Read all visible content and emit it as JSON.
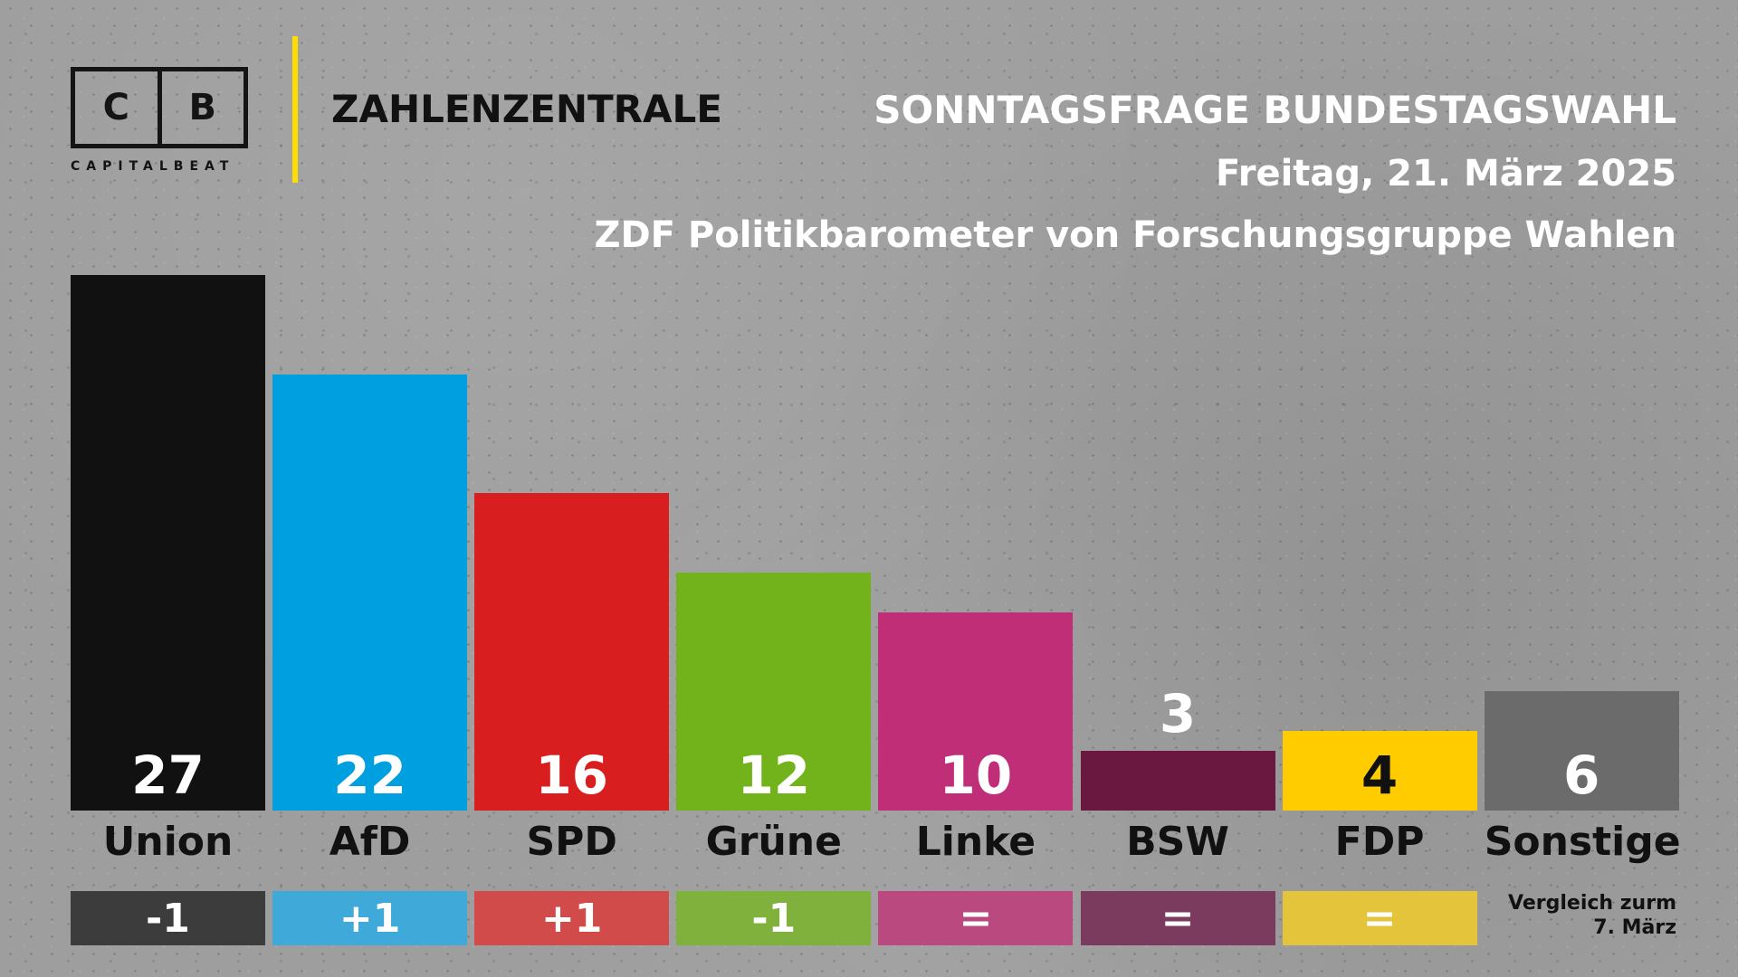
{
  "brand": {
    "logo_left": "C",
    "logo_right": "B",
    "logo_sub": "CAPITALBEAT",
    "name": "ZAHLENZENTRALE",
    "accent": "#ffdd00"
  },
  "header": {
    "title": "SONNTAGSFRAGE BUNDESTAGSWAHL",
    "date": "Freitag, 21. März 2025",
    "source": "ZDF Politikbarometer von Forschungsgruppe Wahlen"
  },
  "footnote": {
    "line1": "Vergleich zurm",
    "line2": "7. März"
  },
  "chart_data": {
    "type": "bar",
    "title": "SONNTAGSFRAGE BUNDESTAGSWAHL",
    "categories": [
      "Union",
      "AfD",
      "SPD",
      "Grüne",
      "Linke",
      "BSW",
      "FDP",
      "Sonstige"
    ],
    "values": [
      27,
      22,
      16,
      12,
      10,
      3,
      4,
      6
    ],
    "value_labels": [
      "27",
      "22",
      "16",
      "12",
      "10",
      "3",
      "4",
      "6"
    ],
    "changes": [
      "-1",
      "+1",
      "+1",
      "-1",
      "=",
      "=",
      "=",
      ""
    ],
    "colors": [
      "#111111",
      "#00a0e0",
      "#d81e1e",
      "#72b31c",
      "#bf2e77",
      "#6a1840",
      "#ffcc00",
      "#6b6b6b"
    ],
    "change_colors": [
      "#3c3c3c",
      "#3fa9d9",
      "#d24b4b",
      "#7fb13c",
      "#b9497f",
      "#7a3b5e",
      "#e3c43a",
      ""
    ],
    "value_text_colors": [
      "#ffffff",
      "#ffffff",
      "#ffffff",
      "#ffffff",
      "#ffffff",
      "#ffffff",
      "#111111",
      "#ffffff"
    ],
    "ylim": [
      0,
      27
    ],
    "grid": false,
    "xlabel": "",
    "ylabel": ""
  }
}
